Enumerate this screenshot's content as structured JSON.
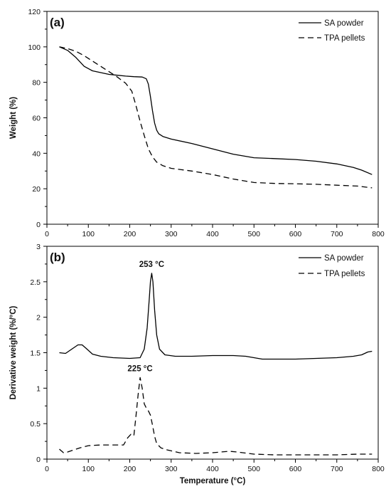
{
  "chart_data": [
    {
      "panel_label": "(a)",
      "type": "line",
      "ylabel": "Weight (%)",
      "xlabel": "",
      "xlim": [
        0,
        800
      ],
      "ylim": [
        0,
        120
      ],
      "xticks": [
        "0",
        "100",
        "200",
        "300",
        "400",
        "500",
        "600",
        "700",
        "800"
      ],
      "yticks": [
        "0",
        "20",
        "40",
        "60",
        "80",
        "100",
        "120"
      ],
      "legend_position": "top-right",
      "series": [
        {
          "name": "SA powder",
          "style": "solid",
          "x": [
            30,
            50,
            70,
            90,
            110,
            130,
            150,
            170,
            190,
            210,
            230,
            240,
            245,
            250,
            255,
            260,
            265,
            270,
            280,
            300,
            350,
            400,
            450,
            500,
            550,
            600,
            650,
            700,
            740,
            760,
            785
          ],
          "y": [
            100,
            98,
            94,
            89,
            86.5,
            85.5,
            84.5,
            84,
            83.5,
            83.2,
            83,
            82,
            79,
            72,
            64,
            57,
            53,
            51,
            49.5,
            48,
            45.5,
            42.5,
            39.5,
            37.5,
            37,
            36.5,
            35.5,
            34,
            32,
            30.5,
            28
          ]
        },
        {
          "name": "TPA pellets",
          "style": "dashed",
          "x": [
            30,
            50,
            70,
            90,
            110,
            130,
            150,
            170,
            190,
            205,
            215,
            225,
            235,
            245,
            255,
            265,
            280,
            300,
            350,
            400,
            450,
            500,
            550,
            600,
            650,
            700,
            750,
            785
          ],
          "y": [
            100,
            99,
            97.5,
            95,
            92,
            89,
            86,
            83,
            79.5,
            75,
            67,
            58,
            50,
            42.5,
            38,
            35,
            33,
            31.5,
            30,
            28,
            25.5,
            23.5,
            23,
            22.8,
            22.5,
            22,
            21.5,
            20.5
          ]
        }
      ]
    },
    {
      "panel_label": "(b)",
      "type": "line",
      "ylabel": "Derivative weight (%/°C)",
      "xlabel": "Temperature (°C)",
      "xlim": [
        0,
        800
      ],
      "ylim": [
        0,
        3
      ],
      "xticks": [
        "0",
        "100",
        "200",
        "300",
        "400",
        "500",
        "600",
        "700",
        "800"
      ],
      "yticks": [
        "0",
        "0.5",
        "1",
        "1.5",
        "2",
        "2.5",
        "3"
      ],
      "legend_position": "top-right",
      "annotations": [
        {
          "text": "253 °C",
          "x": 253,
          "y": 2.62
        },
        {
          "text": "225 °C",
          "x": 225,
          "y": 1.15
        }
      ],
      "series": [
        {
          "name": "SA powder",
          "style": "solid",
          "x": [
            30,
            45,
            60,
            75,
            85,
            95,
            110,
            130,
            160,
            200,
            225,
            235,
            242,
            247,
            250,
            253,
            256,
            260,
            265,
            272,
            285,
            310,
            350,
            400,
            450,
            480,
            520,
            560,
            600,
            650,
            700,
            740,
            760,
            775,
            785
          ],
          "y": [
            1.5,
            1.49,
            1.55,
            1.61,
            1.61,
            1.56,
            1.48,
            1.45,
            1.43,
            1.42,
            1.43,
            1.55,
            1.85,
            2.25,
            2.5,
            2.62,
            2.5,
            2.1,
            1.75,
            1.55,
            1.47,
            1.45,
            1.45,
            1.46,
            1.46,
            1.45,
            1.41,
            1.41,
            1.41,
            1.42,
            1.43,
            1.45,
            1.47,
            1.51,
            1.52
          ]
        },
        {
          "name": "TPA pellets",
          "style": "dashed",
          "x": [
            30,
            40,
            50,
            60,
            80,
            100,
            130,
            170,
            185,
            195,
            203,
            210,
            215,
            220,
            225,
            230,
            235,
            240,
            245,
            250,
            255,
            260,
            265,
            275,
            290,
            320,
            360,
            400,
            440,
            460,
            500,
            550,
            600,
            650,
            700,
            750,
            785
          ],
          "y": [
            0.14,
            0.09,
            0.1,
            0.12,
            0.16,
            0.19,
            0.2,
            0.2,
            0.2,
            0.3,
            0.35,
            0.33,
            0.6,
            0.9,
            1.15,
            1.0,
            0.78,
            0.72,
            0.68,
            0.62,
            0.48,
            0.32,
            0.22,
            0.16,
            0.13,
            0.09,
            0.08,
            0.09,
            0.11,
            0.1,
            0.07,
            0.06,
            0.06,
            0.06,
            0.06,
            0.07,
            0.07
          ]
        }
      ]
    }
  ]
}
